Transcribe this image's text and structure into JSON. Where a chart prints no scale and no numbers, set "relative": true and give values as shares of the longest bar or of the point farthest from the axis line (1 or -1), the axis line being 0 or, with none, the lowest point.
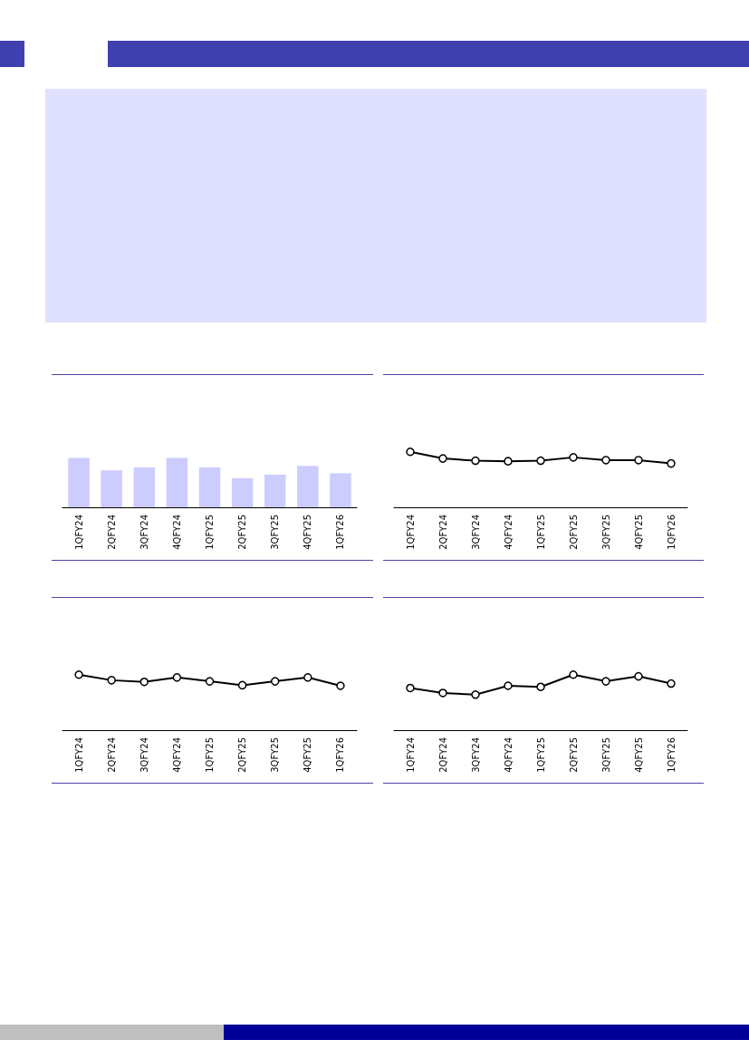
{
  "chart_data": [
    {
      "type": "bar",
      "relative": true,
      "categories": [
        "1QFY24",
        "2QFY24",
        "3QFY24",
        "4QFY24",
        "1QFY25",
        "2QFY25",
        "3QFY25",
        "4QFY25",
        "1QFY26"
      ],
      "color": "#ccccff",
      "values": [
        1,
        0.75,
        0.81,
        1,
        0.81,
        0.59,
        0.66,
        0.84,
        0.69
      ],
      "grid": false
    },
    {
      "type": "line",
      "relative": true,
      "categories": [
        "1QFY24",
        "2QFY24",
        "3QFY24",
        "4QFY24",
        "1QFY25",
        "2QFY25",
        "3QFY25",
        "4QFY25",
        "1QFY26"
      ],
      "color": "#000000",
      "values": [
        1,
        0.88,
        0.84,
        0.83,
        0.84,
        0.9,
        0.85,
        0.85,
        0.79
      ],
      "marker": "circle",
      "grid": false
    },
    {
      "type": "line",
      "relative": true,
      "categories": [
        "1QFY24",
        "2QFY24",
        "3QFY24",
        "4QFY24",
        "1QFY25",
        "2QFY25",
        "3QFY25",
        "4QFY25",
        "1QFY26"
      ],
      "color": "#000000",
      "values": [
        1,
        0.9,
        0.87,
        0.95,
        0.88,
        0.81,
        0.88,
        0.95,
        0.8
      ],
      "marker": "circle",
      "grid": false
    },
    {
      "type": "line",
      "relative": true,
      "categories": [
        "1QFY24",
        "2QFY24",
        "3QFY24",
        "4QFY24",
        "1QFY25",
        "2QFY25",
        "3QFY25",
        "4QFY25",
        "1QFY26"
      ],
      "color": "#000000",
      "values": [
        0.76,
        0.67,
        0.64,
        0.8,
        0.78,
        1,
        0.88,
        0.97,
        0.84
      ],
      "marker": "circle",
      "grid": false
    }
  ]
}
